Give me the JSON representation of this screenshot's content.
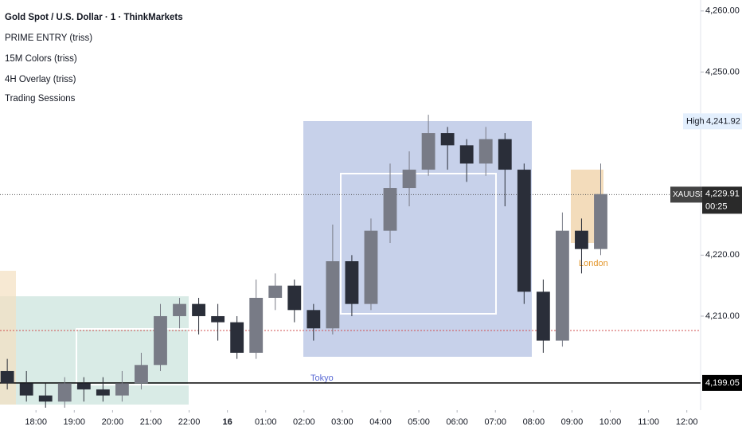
{
  "chart_data": {
    "type": "candlestick",
    "title": "Gold Spot / U.S. Dollar · 1 · ThinkMarkets",
    "indicators": [
      "PRIME ENTRY (triss)",
      "15M Colors (triss)",
      "4H Overlay (triss)",
      "Trading Sessions"
    ],
    "session_labels": [
      "Tokyo",
      "London"
    ],
    "x": [
      17.0,
      17.5,
      18.0,
      18.5,
      19.0,
      19.5,
      20.0,
      20.5,
      21.0,
      21.5,
      22.0,
      22.5,
      24.0,
      24.5,
      25.0,
      25.5,
      26.0,
      26.5,
      27.0,
      27.5,
      28.0,
      28.5,
      29.0,
      29.5,
      30.0,
      30.5,
      31.0,
      31.5,
      32.0,
      32.5,
      33.0,
      33.5
    ],
    "open": [
      4201,
      4199,
      4197,
      4196,
      4199,
      4198,
      4197,
      4199,
      4202,
      4210,
      4212,
      4210,
      4209,
      4204,
      4213,
      4215,
      4211,
      4208,
      4219,
      4212,
      4224,
      4231,
      4234,
      4240,
      4238,
      4235,
      4239,
      4234,
      4214,
      4206,
      4224,
      4221
    ],
    "high": [
      4203,
      4201,
      4199,
      4200,
      4200,
      4200,
      4201,
      4204,
      4212,
      4213,
      4213,
      4212,
      4210,
      4216,
      4217,
      4216,
      4212,
      4225,
      4220,
      4226,
      4235,
      4237,
      4243,
      4241,
      4239,
      4241,
      4240,
      4235,
      4216,
      4227,
      4226,
      4235
    ],
    "low": [
      4198,
      4196,
      4195,
      4195,
      4196,
      4196,
      4196,
      4198,
      4201,
      4208,
      4207,
      4206,
      4203,
      4203,
      4211,
      4209,
      4206,
      4207,
      4210,
      4211,
      4222,
      4228,
      4233,
      4234,
      4232,
      4233,
      4228,
      4212,
      4204,
      4205,
      4217,
      4220
    ],
    "close": [
      4199,
      4197,
      4196,
      4199,
      4198,
      4197,
      4199,
      4202,
      4210,
      4212,
      4210,
      4209,
      4204,
      4213,
      4215,
      4211,
      4208,
      4219,
      4212,
      4224,
      4231,
      4234,
      4240,
      4238,
      4235,
      4239,
      4234,
      4214,
      4206,
      4224,
      4221,
      4230
    ],
    "up_color": "#787b86",
    "down_color": "#2a2e39",
    "xlim": [
      17.06,
      36.36
    ],
    "x_break": [
      23,
      24
    ],
    "xticks": [
      {
        "value": 18,
        "label": "18:00"
      },
      {
        "value": 19,
        "label": "19:00"
      },
      {
        "value": 20,
        "label": "20:00"
      },
      {
        "value": 21,
        "label": "21:00"
      },
      {
        "value": 22,
        "label": "22:00"
      },
      {
        "value": 24,
        "label": "16"
      },
      {
        "value": 25,
        "label": "01:00"
      },
      {
        "value": 26,
        "label": "02:00"
      },
      {
        "value": 27,
        "label": "03:00"
      },
      {
        "value": 28,
        "label": "04:00"
      },
      {
        "value": 29,
        "label": "05:00"
      },
      {
        "value": 30,
        "label": "06:00"
      },
      {
        "value": 31,
        "label": "07:00"
      },
      {
        "value": 32,
        "label": "08:00"
      },
      {
        "value": 33,
        "label": "09:00"
      },
      {
        "value": 34,
        "label": "10:00"
      },
      {
        "value": 35,
        "label": "11:00"
      },
      {
        "value": 36,
        "label": "12:00"
      }
    ],
    "ylim": [
      4194.6,
      4261.8
    ],
    "yticks": [
      {
        "value": 4210,
        "label": "4,210.00"
      },
      {
        "value": 4220,
        "label": "4,220.00"
      },
      {
        "value": 4250,
        "label": "4,250.00"
      },
      {
        "value": 4260,
        "label": "4,260.00"
      }
    ],
    "high_marker": {
      "name": "High",
      "value": 4241.92,
      "label": "4,241.92"
    },
    "last_price": {
      "symbol": "XAUUSD",
      "value": 4229.91,
      "label": "4,229.91",
      "countdown": "00:25"
    },
    "level": {
      "value": 4199.05,
      "label": "4,199.05"
    }
  }
}
